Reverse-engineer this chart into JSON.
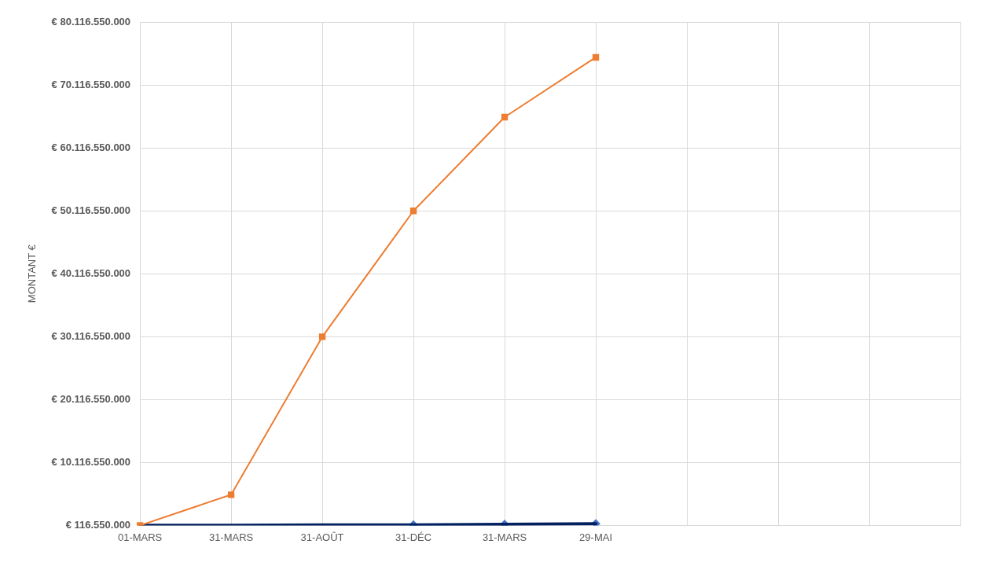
{
  "chart_data": {
    "type": "line",
    "ylabel": "MONTANT €",
    "categories": [
      "01-MARS",
      "31-MARS",
      "31-AOÛT",
      "31-DÉC",
      "31-MARS",
      "29-MAI",
      null,
      null,
      null,
      null
    ],
    "series": [
      {
        "color": "#ed7d31",
        "marker": "square",
        "values": [
          120000000,
          5000000000,
          30100000000,
          50100000000,
          65000000000,
          74500000000,
          null,
          null,
          null,
          null
        ]
      },
      {
        "color": "#002060",
        "marker": "none",
        "values": [
          120000000,
          150000000,
          200000000,
          200000000,
          300000000,
          400000000,
          null,
          null,
          null,
          null
        ]
      },
      {
        "color": "#4472c4",
        "marker": "diamond",
        "values": [
          null,
          null,
          null,
          200000000,
          300000000,
          400000000,
          null,
          null,
          null,
          null
        ]
      }
    ],
    "ylim": [
      116550000,
      80116550000
    ],
    "yticks": [
      {
        "value": 116550000,
        "label": "€ 116.550.000"
      },
      {
        "value": 10116550000,
        "label": "€ 10.116.550.000"
      },
      {
        "value": 20116550000,
        "label": "€ 20.116.550.000"
      },
      {
        "value": 30116550000,
        "label": "€ 30.116.550.000"
      },
      {
        "value": 40116550000,
        "label": "€ 40.116.550.000"
      },
      {
        "value": 50116550000,
        "label": "€ 50.116.550.000"
      },
      {
        "value": 60116550000,
        "label": "€ 60.116.550.000"
      },
      {
        "value": 70116550000,
        "label": "€ 70.116.550.000"
      },
      {
        "value": 80116550000,
        "label": "€ 80.116.550.000"
      }
    ],
    "grid": true,
    "legend": false
  }
}
